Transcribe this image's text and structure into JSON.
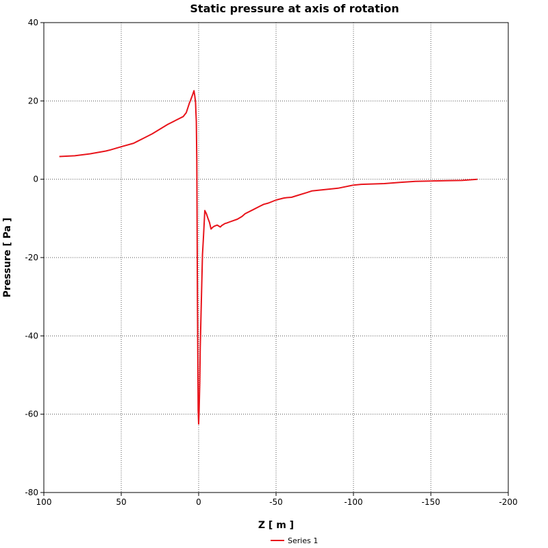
{
  "chart_data": {
    "type": "line",
    "title": "Static pressure at axis of rotation",
    "xlabel": "Z [ m ]",
    "ylabel": "Pressure [ Pa ]",
    "xlim": [
      100,
      -200
    ],
    "ylim": [
      -80,
      40
    ],
    "x_reversed": true,
    "xticks": [
      100,
      50,
      0,
      -50,
      -100,
      -150,
      -200
    ],
    "xtick_labels": [
      "100",
      "50",
      "0",
      "-50",
      "-100",
      "-150",
      "-200"
    ],
    "yticks": [
      40,
      20,
      0,
      -20,
      -40,
      -60,
      -80
    ],
    "ytick_labels": [
      "40",
      "20",
      "0",
      "-20",
      "-40",
      "-60",
      "-80"
    ],
    "grid": true,
    "legend": "bottom",
    "series": [
      {
        "name": "Series 1",
        "color": "#e8141b",
        "x": [
          90,
          80,
          70,
          60,
          57,
          50,
          42,
          40,
          35,
          30,
          25,
          20,
          15,
          10,
          8,
          6,
          5,
          4,
          3,
          2.5,
          2,
          1.8,
          1.5,
          1.2,
          1,
          0.8,
          0.5,
          0.3,
          0,
          -0.3,
          -0.7,
          -1,
          -1.5,
          -2,
          -2.5,
          -3,
          -4,
          -5,
          -6,
          -7,
          -8,
          -9,
          -10,
          -12,
          -14,
          -15,
          -17,
          -18,
          -20,
          -25,
          -28,
          -30,
          -35,
          -40,
          -42,
          -45,
          -50,
          -55,
          -57,
          -60,
          -65,
          -70,
          -73,
          -80,
          -90,
          -100,
          -105,
          -120,
          -130,
          -140,
          -150,
          -160,
          -170,
          -180
        ],
        "y": [
          5.8,
          6,
          6.5,
          7.2,
          7.5,
          8.3,
          9.2,
          9.6,
          10.6,
          11.6,
          12.8,
          14,
          15,
          16,
          17,
          19.4,
          20.4,
          21.5,
          22.6,
          21.2,
          19.6,
          17.6,
          14.8,
          5,
          -10,
          -30,
          -48,
          -59,
          -62.5,
          -59,
          -52,
          -43,
          -35,
          -27,
          -19.2,
          -15.5,
          -8,
          -8.8,
          -10,
          -11,
          -12.7,
          -12.3,
          -12,
          -11.7,
          -12.2,
          -11.8,
          -11.3,
          -11.2,
          -10.9,
          -10.2,
          -9.5,
          -8.8,
          -7.8,
          -6.8,
          -6.4,
          -6.1,
          -5.3,
          -4.8,
          -4.7,
          -4.6,
          -4,
          -3.4,
          -3,
          -2.7,
          -2.3,
          -1.5,
          -1.3,
          -1.1,
          -0.8,
          -0.55,
          -0.45,
          -0.35,
          -0.3,
          0
        ]
      }
    ]
  }
}
